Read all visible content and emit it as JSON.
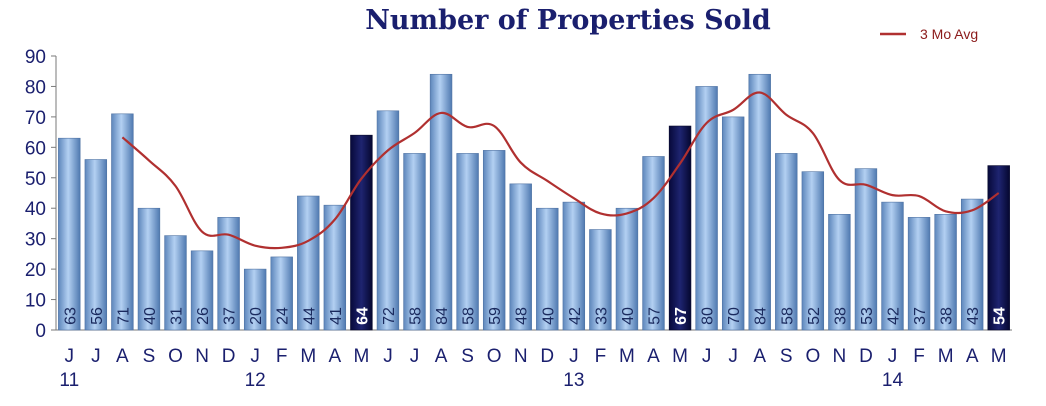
{
  "chart_data": {
    "type": "bar",
    "title": "Number of Properties Sold",
    "categories": [
      "J",
      "J",
      "A",
      "S",
      "O",
      "N",
      "D",
      "J",
      "F",
      "M",
      "A",
      "M",
      "J",
      "J",
      "A",
      "S",
      "O",
      "N",
      "D",
      "J",
      "F",
      "M",
      "A",
      "M",
      "J",
      "J",
      "A",
      "S",
      "O",
      "N",
      "D",
      "J",
      "F",
      "M",
      "A",
      "M"
    ],
    "year_labels": [
      {
        "index": 0,
        "label": "11"
      },
      {
        "index": 7,
        "label": "12"
      },
      {
        "index": 19,
        "label": "13"
      },
      {
        "index": 31,
        "label": "14"
      }
    ],
    "values": [
      63,
      56,
      71,
      40,
      31,
      26,
      37,
      20,
      24,
      44,
      41,
      64,
      72,
      58,
      84,
      58,
      59,
      48,
      40,
      42,
      33,
      40,
      57,
      67,
      80,
      70,
      84,
      58,
      52,
      38,
      53,
      42,
      37,
      38,
      43,
      54
    ],
    "highlight_indices": [
      11,
      23,
      35
    ],
    "line_series": {
      "name": "3 Mo Avg",
      "start_index": 2,
      "values": [
        63.3,
        55.7,
        47.3,
        32.3,
        31.3,
        27.7,
        27,
        29.3,
        36.3,
        49.7,
        59,
        64.7,
        71.3,
        66.7,
        67,
        55,
        49,
        43.3,
        38.3,
        38.3,
        43.3,
        54.7,
        68,
        72.3,
        78,
        70.7,
        64.7,
        49.3,
        47.7,
        44.3,
        44,
        39,
        39.3,
        45
      ]
    },
    "ylim": [
      0,
      90
    ],
    "yticks": [
      0,
      10,
      20,
      30,
      40,
      50,
      60,
      70,
      80,
      90
    ],
    "xlabel": "",
    "ylabel": "",
    "grid": false,
    "legend_position": "top-right",
    "colors": {
      "bar_light": "#8fb4e0",
      "bar_dark": "#0f1450",
      "line": "#b03030",
      "text": "#1a1f6e"
    }
  }
}
